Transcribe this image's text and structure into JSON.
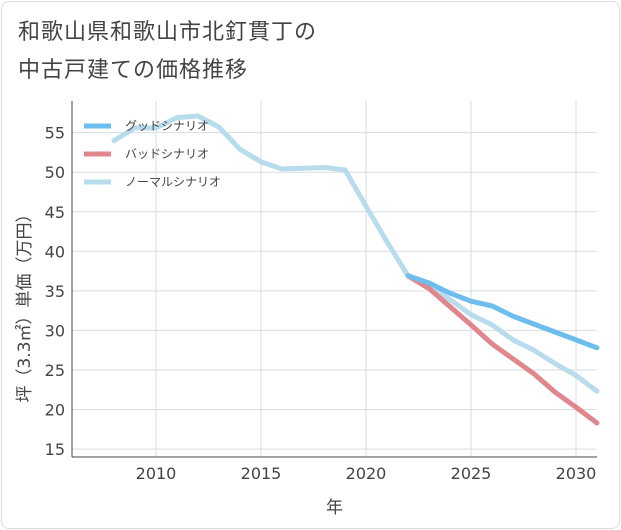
{
  "title": {
    "line1": "和歌山県和歌山市北釘貫丁の",
    "line2": "中古戸建ての価格推移"
  },
  "chart_data": {
    "type": "line",
    "xlabel": "年",
    "ylabel": "坪（3.3㎡）単価（万円）",
    "xlim": [
      2006,
      2031
    ],
    "ylim": [
      14,
      59
    ],
    "xticks": [
      2010,
      2015,
      2020,
      2025,
      2030
    ],
    "yticks": [
      15,
      20,
      25,
      30,
      35,
      40,
      45,
      50,
      55
    ],
    "grid": true,
    "legend_position": "top-left",
    "series": [
      {
        "name": "グッドシナリオ",
        "color": "#6dbdee",
        "x": [
          2022,
          2023,
          2024,
          2025,
          2026,
          2027,
          2028,
          2029,
          2030,
          2031
        ],
        "y": [
          36.9,
          36.0,
          34.7,
          33.7,
          33.1,
          31.8,
          30.8,
          29.8,
          28.8,
          27.8
        ]
      },
      {
        "name": "バッドシナリオ",
        "color": "#e0878e",
        "x": [
          2022,
          2023,
          2024,
          2025,
          2026,
          2027,
          2028,
          2029,
          2030,
          2031
        ],
        "y": [
          36.9,
          35.3,
          33.0,
          30.7,
          28.3,
          26.4,
          24.5,
          22.2,
          20.3,
          18.3
        ]
      },
      {
        "name": "ノーマルシナリオ",
        "color": "#b8dcec",
        "x": [
          2008,
          2009,
          2010,
          2011,
          2012,
          2013,
          2014,
          2015,
          2016,
          2017,
          2018,
          2019,
          2020,
          2021,
          2022,
          2023,
          2024,
          2025,
          2026,
          2027,
          2028,
          2029,
          2030,
          2031
        ],
        "y": [
          54.0,
          55.6,
          55.6,
          56.9,
          57.1,
          55.7,
          52.9,
          51.3,
          50.4,
          50.5,
          50.6,
          50.3,
          45.7,
          41.2,
          36.9,
          35.4,
          33.9,
          32.0,
          30.7,
          28.8,
          27.5,
          25.8,
          24.3,
          22.3
        ]
      }
    ]
  }
}
